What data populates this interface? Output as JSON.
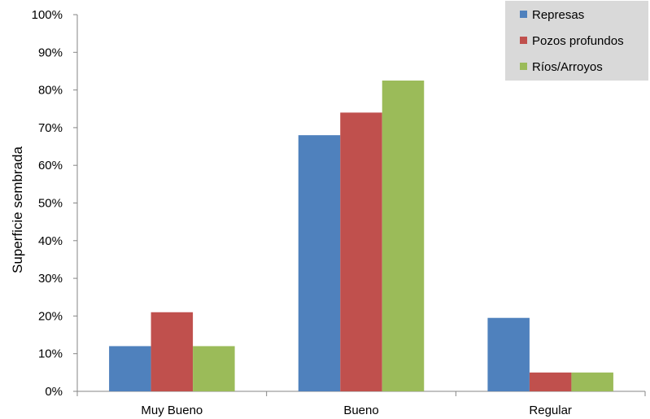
{
  "chart_data": {
    "type": "bar",
    "categories": [
      "Muy Bueno",
      "Bueno",
      "Regular"
    ],
    "series": [
      {
        "name": "Represas",
        "values": [
          12,
          68,
          19.5
        ],
        "color": "#4F81BD"
      },
      {
        "name": "Pozos profundos",
        "values": [
          21,
          74,
          5
        ],
        "color": "#C0504D"
      },
      {
        "name": "Ríos/Arroyos",
        "values": [
          12,
          82.5,
          5
        ],
        "color": "#9BBB59"
      }
    ],
    "title": "",
    "xlabel": "",
    "ylabel": "Superficie sembrada",
    "ylim": [
      0,
      100
    ],
    "yticks": [
      "0%",
      "10%",
      "20%",
      "30%",
      "40%",
      "50%",
      "60%",
      "70%",
      "80%",
      "90%",
      "100%"
    ],
    "grid": false,
    "legend_position": "top-right",
    "legend_background": "#D9D9D9"
  }
}
